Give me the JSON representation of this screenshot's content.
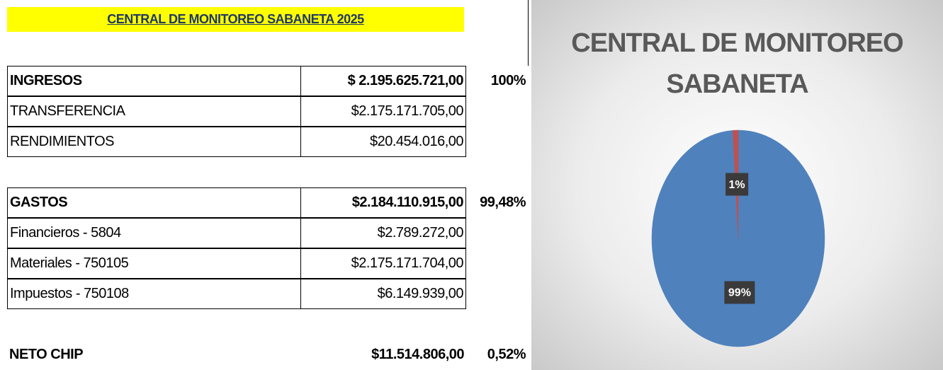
{
  "table": {
    "title": "CENTRAL DE MONITOREO SABANETA 2025",
    "sections": [
      {
        "header": [
          "INGRESOS",
          "$ 2.195.625.721,00",
          "100%"
        ],
        "items": [
          [
            "TRANSFERENCIA",
            "$2.175.171.705,00"
          ],
          [
            "RENDIMIENTOS",
            "$20.454.016,00"
          ]
        ]
      },
      {
        "header": [
          "GASTOS",
          "$2.184.110.915,00",
          "99,48%"
        ],
        "items": [
          [
            "Financieros - 5804",
            "$2.789.272,00"
          ],
          [
            "Materiales - 750105",
            "$2.175.171.704,00"
          ],
          [
            "Impuestos - 750108",
            "$6.149.939,00"
          ]
        ]
      }
    ],
    "total": [
      "NETO CHIP",
      "$11.514.806,00",
      "0,52%"
    ]
  },
  "chart_data": {
    "type": "pie",
    "title": "CENTRAL DE MONITOREO SABANETA",
    "values": [
      99,
      1
    ],
    "value_labels": [
      "99%",
      "1%"
    ],
    "colors": [
      "#4f81bd",
      "#c0504d"
    ]
  }
}
